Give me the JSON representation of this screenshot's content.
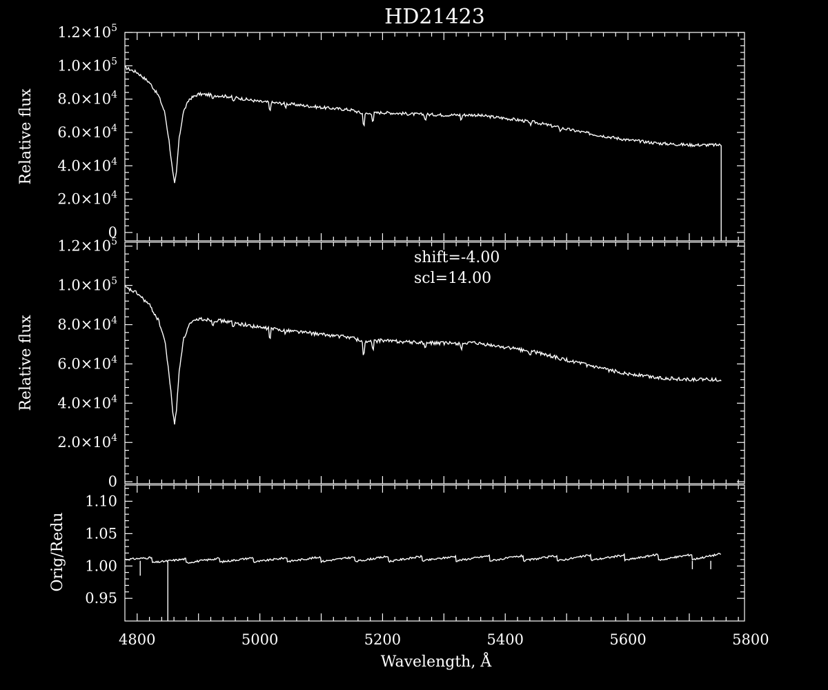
{
  "title": "HD21423",
  "colors": {
    "background": "#000000",
    "foreground": "#ffffff"
  },
  "chart_data": [
    {
      "type": "line",
      "panel": "original",
      "title": "HD21423",
      "xlabel": "",
      "ylabel": "Relative flux",
      "xlim": [
        4780,
        5790
      ],
      "ylim": [
        -5000,
        120000
      ],
      "yticks": [
        {
          "value": 0,
          "label": "0"
        },
        {
          "value": 20000,
          "label": "2.0×10",
          "exp": "4"
        },
        {
          "value": 40000,
          "label": "4.0×10",
          "exp": "4"
        },
        {
          "value": 60000,
          "label": "6.0×10",
          "exp": "4"
        },
        {
          "value": 80000,
          "label": "8.0×10",
          "exp": "4"
        },
        {
          "value": 100000,
          "label": "1.0×10",
          "exp": "5"
        },
        {
          "value": 120000,
          "label": "1.2×10",
          "exp": "5"
        }
      ],
      "series": [
        {
          "x": [
            4780,
            4800,
            4820,
            4835,
            4845,
            4852,
            4858,
            4861,
            4864,
            4868,
            4875,
            4885,
            4900,
            4920,
            4950,
            5000,
            5050,
            5100,
            5150,
            5170,
            5200,
            5250,
            5300,
            5350,
            5400,
            5450,
            5500,
            5550,
            5600,
            5650,
            5700,
            5752
          ],
          "y": [
            99000,
            96000,
            90000,
            82000,
            72000,
            55000,
            36000,
            29000,
            36000,
            55000,
            72000,
            80000,
            83000,
            82500,
            81500,
            78500,
            77000,
            75000,
            73500,
            71000,
            72000,
            71000,
            70500,
            70500,
            68500,
            66000,
            62000,
            58500,
            55500,
            53500,
            52500,
            52500
          ]
        }
      ],
      "drop_to_zero_at": 5752
    },
    {
      "type": "line",
      "panel": "reduced",
      "xlabel": "",
      "ylabel": "Relative flux",
      "xlim": [
        4780,
        5790
      ],
      "ylim": [
        -1000,
        122000
      ],
      "annotations": [
        "shift=-4.00",
        "scl=14.00"
      ],
      "yticks": [
        {
          "value": 0,
          "label": "0"
        },
        {
          "value": 20000,
          "label": "2.0×10",
          "exp": "4"
        },
        {
          "value": 40000,
          "label": "4.0×10",
          "exp": "4"
        },
        {
          "value": 60000,
          "label": "6.0×10",
          "exp": "4"
        },
        {
          "value": 80000,
          "label": "8.0×10",
          "exp": "4"
        },
        {
          "value": 100000,
          "label": "1.0×10",
          "exp": "5"
        },
        {
          "value": 120000,
          "label": "1.2×10",
          "exp": "5"
        }
      ],
      "series": [
        {
          "x": [
            4780,
            4800,
            4820,
            4835,
            4845,
            4852,
            4858,
            4861,
            4864,
            4868,
            4875,
            4885,
            4900,
            4920,
            4950,
            5000,
            5050,
            5100,
            5150,
            5170,
            5200,
            5250,
            5300,
            5350,
            5400,
            5450,
            5500,
            5550,
            5600,
            5650,
            5700,
            5752
          ],
          "y": [
            99000,
            96000,
            90000,
            82000,
            72000,
            55000,
            36000,
            29500,
            36000,
            55000,
            72000,
            80000,
            83000,
            82500,
            81500,
            78500,
            77000,
            75000,
            73500,
            71000,
            72000,
            71000,
            70500,
            70500,
            68500,
            66000,
            62000,
            58000,
            55000,
            53000,
            52000,
            52000
          ]
        }
      ]
    },
    {
      "type": "line",
      "panel": "ratio",
      "xlabel": "Wavelength, Å",
      "ylabel": "Orig/Redu",
      "xlim": [
        4780,
        5790
      ],
      "ylim": [
        0.915,
        1.125
      ],
      "yticks": [
        {
          "value": 0.95,
          "label": "0.95"
        },
        {
          "value": 1.0,
          "label": "1.00"
        },
        {
          "value": 1.05,
          "label": "1.05"
        },
        {
          "value": 1.1,
          "label": "1.10"
        }
      ],
      "xticks": [
        {
          "value": 4800,
          "label": "4800"
        },
        {
          "value": 5000,
          "label": "5000"
        },
        {
          "value": 5200,
          "label": "5200"
        },
        {
          "value": 5400,
          "label": "5400"
        },
        {
          "value": 5600,
          "label": "5600"
        },
        {
          "value": 5800,
          "label": "5800"
        }
      ],
      "segment_edges": [
        4780,
        4825,
        4880,
        4935,
        4990,
        5045,
        5100,
        5155,
        5210,
        5265,
        5320,
        5375,
        5430,
        5485,
        5540,
        5595,
        5650,
        5705,
        5752
      ],
      "segment_low": [
        1.01,
        1.005,
        1.005,
        1.006,
        1.006,
        1.007,
        1.007,
        1.007,
        1.007,
        1.008,
        1.008,
        1.008,
        1.008,
        1.008,
        1.009,
        1.009,
        1.009,
        1.01
      ],
      "segment_high": [
        1.013,
        1.011,
        1.012,
        1.013,
        1.013,
        1.014,
        1.014,
        1.015,
        1.015,
        1.015,
        1.016,
        1.016,
        1.016,
        1.017,
        1.017,
        1.018,
        1.018,
        1.019
      ],
      "spikes": [
        {
          "x": 4805,
          "y": 0.985
        },
        {
          "x": 4850,
          "y": 0.89
        },
        {
          "x": 5705,
          "y": 0.995
        },
        {
          "x": 5735,
          "y": 0.995
        }
      ]
    }
  ]
}
